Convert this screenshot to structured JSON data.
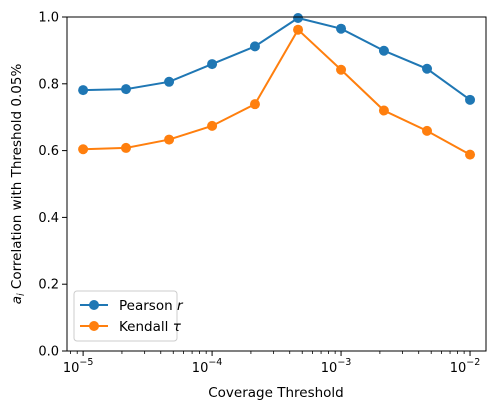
{
  "chart_data": {
    "type": "line",
    "title": "",
    "xlabel": "Coverage Threshold",
    "ylabel_prefix": "a",
    "ylabel_sub": "i",
    "ylabel_rest": " Correlation with Threshold 0.05%",
    "xscale": "log",
    "x": [
      1e-05,
      2.15e-05,
      4.64e-05,
      0.0001,
      0.000215,
      0.000464,
      0.001,
      0.00215,
      0.00464,
      0.01
    ],
    "xlim": [
      7.5e-06,
      0.0133
    ],
    "ylim": [
      0,
      1.0
    ],
    "xticks": [
      {
        "value": 1e-05,
        "base": "10",
        "exp": "−5"
      },
      {
        "value": 0.0001,
        "base": "10",
        "exp": "−4"
      },
      {
        "value": 0.001,
        "base": "10",
        "exp": "−3"
      },
      {
        "value": 0.01,
        "base": "10",
        "exp": "−2"
      }
    ],
    "yticks": [
      {
        "value": 0.0,
        "label": "0.0"
      },
      {
        "value": 0.2,
        "label": "0.2"
      },
      {
        "value": 0.4,
        "label": "0.4"
      },
      {
        "value": 0.6,
        "label": "0.6"
      },
      {
        "value": 0.8,
        "label": "0.8"
      },
      {
        "value": 1.0,
        "label": "1.0"
      }
    ],
    "grid": false,
    "legend_position": "lower-left",
    "series": [
      {
        "name": "Pearson ",
        "name_symbol": "r",
        "color": "#1f77b4",
        "values": [
          0.781,
          0.784,
          0.806,
          0.859,
          0.912,
          0.997,
          0.965,
          0.899,
          0.845,
          0.752
        ]
      },
      {
        "name": "Kendall ",
        "name_symbol": "τ",
        "color": "#ff7f0e",
        "values": [
          0.604,
          0.608,
          0.633,
          0.674,
          0.739,
          0.962,
          0.842,
          0.72,
          0.659,
          0.588
        ]
      }
    ]
  }
}
